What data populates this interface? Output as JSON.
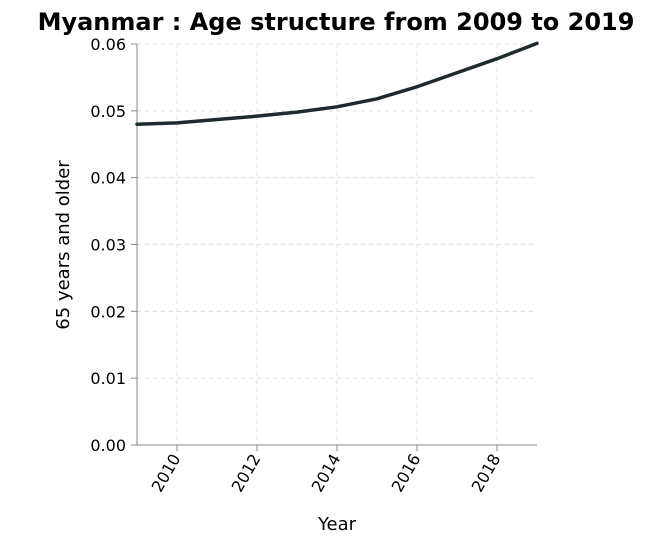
{
  "chart_data": {
    "type": "line",
    "title": "Myanmar : Age structure from 2009 to 2019",
    "xlabel": "Year",
    "ylabel": "65 years and older",
    "x": [
      2009,
      2010,
      2011,
      2012,
      2013,
      2014,
      2015,
      2016,
      2017,
      2018,
      2019
    ],
    "series": [
      {
        "values": [
          0.048,
          0.0482,
          0.0487,
          0.0492,
          0.0498,
          0.0506,
          0.0518,
          0.0536,
          0.0557,
          0.0578,
          0.0601
        ],
        "color": "#1e2a2d"
      }
    ],
    "xlim": [
      2009,
      2019
    ],
    "ylim": [
      0,
      0.06
    ],
    "xticks": [
      "2010",
      "2012",
      "2014",
      "2016",
      "2018"
    ],
    "xtick_values": [
      2010,
      2012,
      2014,
      2016,
      2018
    ],
    "yticks": [
      "0.00",
      "0.01",
      "0.02",
      "0.03",
      "0.04",
      "0.05",
      "0.06"
    ],
    "ytick_values": [
      0,
      0.01,
      0.02,
      0.03,
      0.04,
      0.05,
      0.06
    ],
    "grid": true,
    "legend": "none"
  }
}
